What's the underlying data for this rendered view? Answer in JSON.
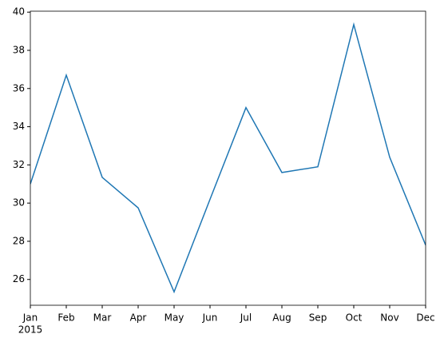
{
  "chart_data": {
    "type": "line",
    "categories": [
      "Jan",
      "Feb",
      "Mar",
      "Apr",
      "May",
      "Jun",
      "Jul",
      "Aug",
      "Sep",
      "Oct",
      "Nov",
      "Dec"
    ],
    "x_year_label": "2015",
    "values": [
      31.0,
      36.7,
      31.35,
      29.75,
      25.35,
      30.2,
      35.0,
      31.6,
      31.9,
      39.35,
      32.4,
      27.8
    ],
    "color": "#1f77b4",
    "ylim": [
      24.65,
      40.05
    ],
    "yticks": [
      26,
      28,
      30,
      32,
      34,
      36,
      38,
      40
    ],
    "grid": false
  }
}
